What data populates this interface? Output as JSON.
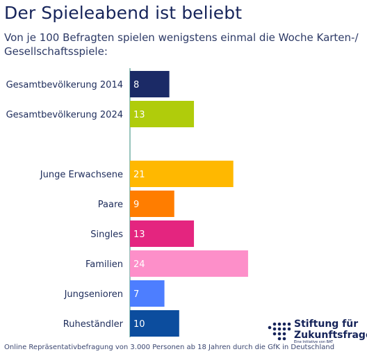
{
  "chart_data": {
    "type": "bar",
    "orientation": "horizontal",
    "title": "Der Spieleabend ist beliebt",
    "subtitle": "Von je 100 Befragten spielen wenigstens einmal die Woche Karten-/ Gesellschaftsspiele:",
    "xlabel": "",
    "ylabel": "",
    "xlim": [
      0,
      24
    ],
    "grid": false,
    "categories": [
      "Gesamtbevölkerung 2014",
      "Gesamtbevölkerung 2024",
      "Junge Erwachsene",
      "Paare",
      "Singles",
      "Familien",
      "Jungsenioren",
      "Ruheständler"
    ],
    "values": [
      8,
      13,
      21,
      9,
      13,
      24,
      7,
      10
    ],
    "colors": [
      "#1b2a66",
      "#b0cc0b",
      "#ffb800",
      "#ff7d00",
      "#e4257f",
      "#fd8fc9",
      "#4d7eff",
      "#0c4d9e"
    ],
    "source": "Online Repräsentativbefragung von 3.000 Personen ab 18 Jahren durch die GfK in Deutschland"
  },
  "branding": {
    "name": "Stiftung für\nZukunftsfragen",
    "tagline": "Eine Initiative von BAT",
    "color": "#16245a"
  }
}
